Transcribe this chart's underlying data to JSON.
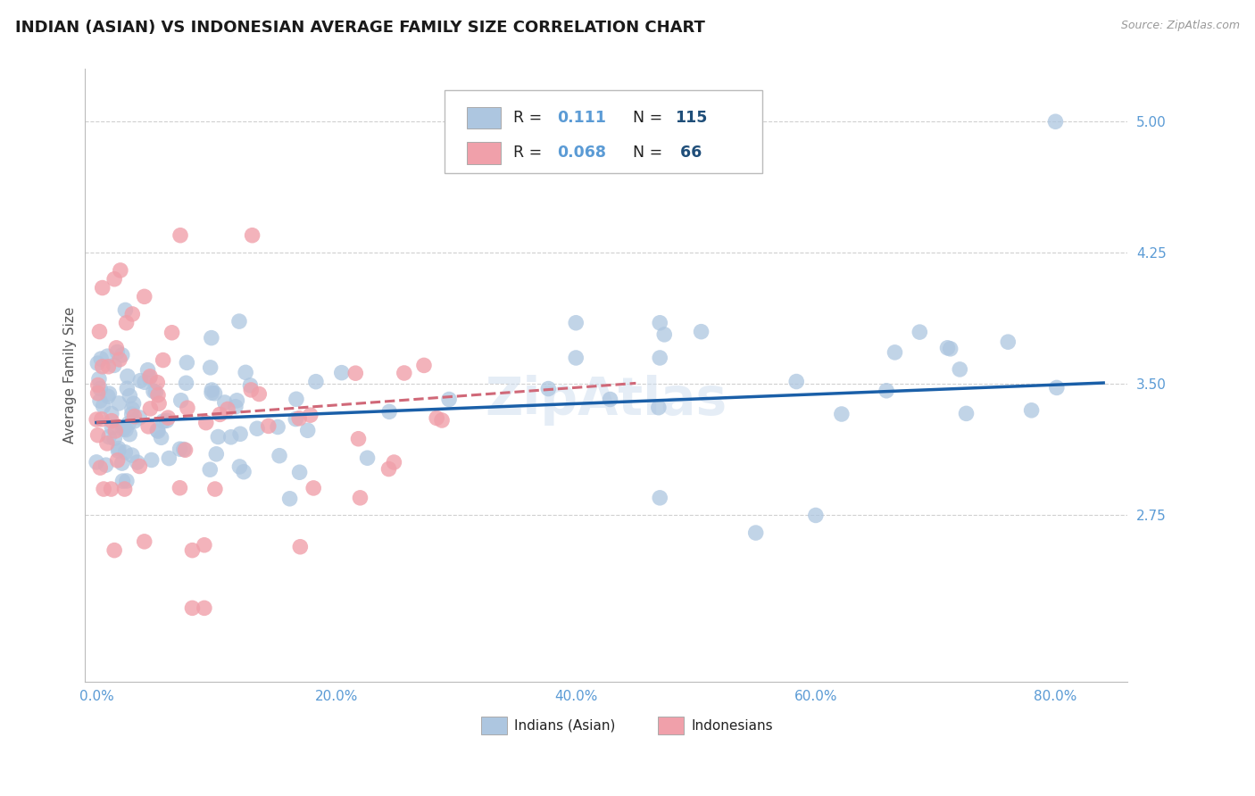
{
  "title": "INDIAN (ASIAN) VS INDONESIAN AVERAGE FAMILY SIZE CORRELATION CHART",
  "source": "Source: ZipAtlas.com",
  "ylabel": "Average Family Size",
  "xlabel_ticks": [
    "0.0%",
    "20.0%",
    "40.0%",
    "60.0%",
    "80.0%"
  ],
  "xlabel_vals": [
    0.0,
    0.2,
    0.4,
    0.6,
    0.8
  ],
  "ylim": [
    1.8,
    5.3
  ],
  "xlim": [
    -0.01,
    0.86
  ],
  "yticks": [
    2.75,
    3.5,
    4.25,
    5.0
  ],
  "ytick_labels": [
    "2.75",
    "3.50",
    "4.25",
    "5.00"
  ],
  "title_color": "#1a1a1a",
  "title_fontsize": 13,
  "axis_label_color": "#555555",
  "tick_color": "#5b9bd5",
  "source_color": "#999999",
  "background_color": "#ffffff",
  "grid_color": "#d0d0d0",
  "legend_R_color": "#5b9bd5",
  "legend_N_color": "#1f4e79",
  "blue_dot_color": "#adc6e0",
  "pink_dot_color": "#f0a0aa",
  "blue_line_color": "#1a5fa8",
  "pink_line_color": "#d06878",
  "legend_label_blue": "Indians (Asian)",
  "legend_label_pink": "Indonesians"
}
